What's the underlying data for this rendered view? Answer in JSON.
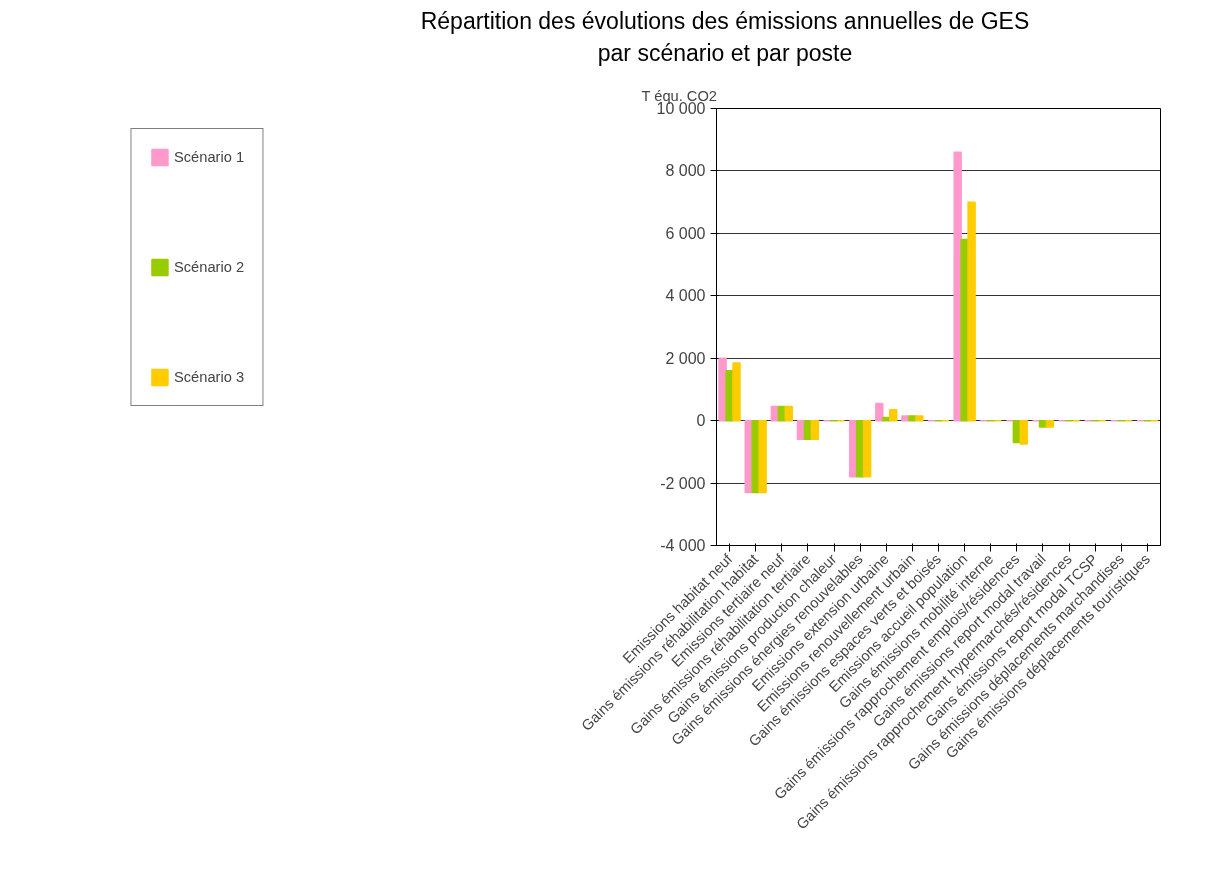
{
  "chart_data": {
    "type": "bar",
    "title": "Répartition des évolutions des émissions annuelles de GES\npar scénario et par poste",
    "ylabel": "T équ. CO2",
    "categories": [
      "Emissions habitat neuf",
      "Gains émissions réhabilitation habitat",
      "Emissions tertiaire neuf",
      "Gains émissions réhabilitation tertiaire",
      "Gains émissions production chaleur",
      "Gains émissions énergies renouvelables",
      "Emissions extension urbaine",
      "Emissions renouvellement urbain",
      "Gains émissions espaces verts et boisés",
      "Emissions accueil population",
      "Gains émissions mobilité interne",
      "Gains émissions rapprochement emplois/résidences",
      "Gains émissions report modal travail",
      "Gains émissions rapprochement hypermarchés/résidences",
      "Gains émissions report modal TCSP",
      "Gains émissions déplacements marchandises",
      "Gains émissions déplacements touristiques"
    ],
    "series": [
      {
        "name": "Scénario 1",
        "color": "#ff99cc",
        "values": [
          2000,
          -2300,
          450,
          -600,
          0,
          -1800,
          550,
          150,
          0,
          8600,
          0,
          0,
          0,
          0,
          0,
          0,
          0
        ]
      },
      {
        "name": "Scénario 2",
        "color": "#99cc00",
        "values": [
          1600,
          -2300,
          450,
          -600,
          0,
          -1800,
          100,
          150,
          0,
          5800,
          0,
          -700,
          -200,
          0,
          0,
          0,
          0
        ]
      },
      {
        "name": "Scénario 3",
        "color": "#ffcc00",
        "values": [
          1850,
          -2300,
          450,
          -600,
          0,
          -1800,
          350,
          150,
          0,
          7000,
          0,
          -750,
          -200,
          0,
          0,
          0,
          0
        ]
      }
    ],
    "ylim": [
      -4000,
      10000
    ],
    "yticks": [
      {
        "value": -4000,
        "label": "-4 000"
      },
      {
        "value": -2000,
        "label": "-2 000"
      },
      0,
      {
        "value": 2000,
        "label": "2 000"
      },
      {
        "value": 4000,
        "label": "4 000"
      },
      {
        "value": 6000,
        "label": "6 000"
      },
      {
        "value": 8000,
        "label": "8 000"
      },
      {
        "value": 10000,
        "label": "10 000"
      }
    ],
    "grid": "y",
    "legend": "left"
  }
}
